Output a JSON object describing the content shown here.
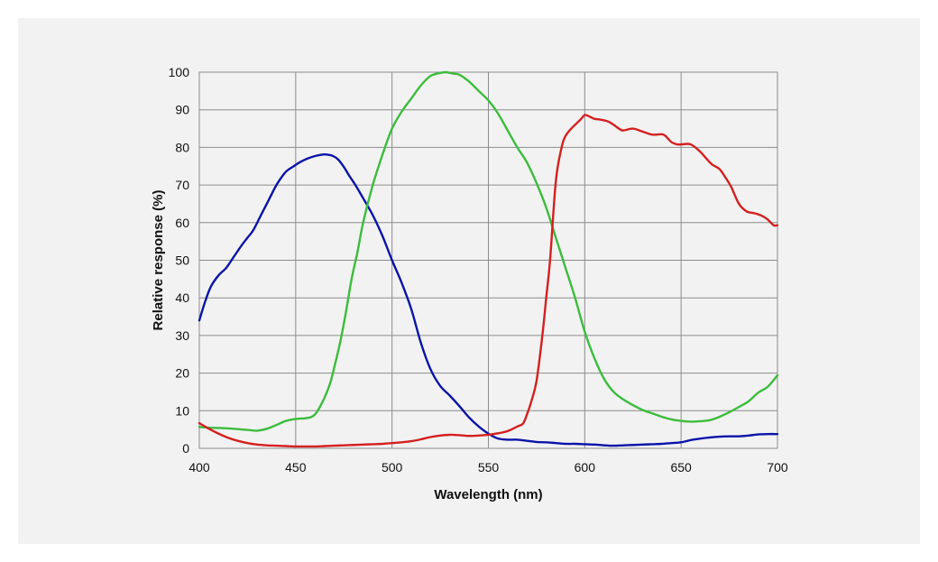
{
  "chart_data": {
    "type": "line",
    "title": "",
    "xlabel": "Wavelength (nm)",
    "ylabel": "Relative response (%)",
    "xlim": [
      400,
      700
    ],
    "ylim": [
      0,
      100
    ],
    "xticks": [
      400,
      450,
      500,
      550,
      600,
      650,
      700
    ],
    "yticks": [
      0,
      10,
      20,
      30,
      40,
      50,
      60,
      70,
      80,
      90,
      100
    ],
    "grid": true,
    "legend": "none",
    "series": [
      {
        "name": "Blue",
        "color": "#0a14a8",
        "x": [
          400,
          403,
          406,
          410,
          414,
          418,
          422,
          425,
          428,
          432,
          436,
          440,
          444,
          446,
          449,
          452,
          456,
          460,
          464,
          466,
          469,
          472,
          475,
          478,
          481,
          485,
          490,
          495,
          500,
          505,
          510,
          515,
          520,
          525,
          530,
          535,
          540,
          545,
          550,
          555,
          560,
          565,
          570,
          575,
          580,
          585,
          590,
          595,
          600,
          605,
          610,
          615,
          620,
          625,
          630,
          635,
          640,
          645,
          650,
          655,
          660,
          665,
          670,
          675,
          680,
          685,
          690,
          695,
          700
        ],
        "y": [
          34,
          39,
          43,
          46,
          48,
          51,
          54,
          56,
          58,
          62,
          66,
          70,
          73,
          74,
          75,
          76,
          77,
          77.7,
          78.1,
          78.1,
          77.8,
          76.8,
          74.8,
          72.3,
          70,
          66.5,
          62,
          56.5,
          50,
          44,
          37,
          28,
          21,
          16.6,
          14,
          11.2,
          8.2,
          5.8,
          3.9,
          2.6,
          2.3,
          2.3,
          2,
          1.7,
          1.6,
          1.4,
          1.2,
          1.2,
          1.1,
          1,
          0.8,
          0.7,
          0.8,
          0.9,
          1,
          1.1,
          1.2,
          1.4,
          1.6,
          2.2,
          2.6,
          2.9,
          3.1,
          3.2,
          3.2,
          3.4,
          3.7,
          3.8,
          3.8
        ]
      },
      {
        "name": "Green",
        "color": "#3cbc3c",
        "x": [
          400,
          405,
          410,
          415,
          420,
          425,
          430,
          435,
          440,
          445,
          450,
          455,
          458,
          460,
          462,
          465,
          468,
          470,
          473,
          476,
          479,
          482,
          485,
          490,
          495,
          500,
          505,
          510,
          515,
          520,
          525,
          528,
          530,
          532,
          535,
          540,
          545,
          550,
          555,
          560,
          565,
          570,
          575,
          580,
          585,
          590,
          595,
          600,
          605,
          610,
          615,
          620,
          625,
          630,
          635,
          640,
          645,
          650,
          655,
          660,
          665,
          670,
          675,
          680,
          685,
          690,
          695,
          700
        ],
        "y": [
          5.7,
          5.5,
          5.4,
          5.3,
          5.1,
          4.9,
          4.7,
          5.2,
          6.2,
          7.3,
          7.8,
          8,
          8.3,
          9,
          10.5,
          13.5,
          17.5,
          21.5,
          28,
          36,
          45,
          52,
          60,
          70,
          78,
          85,
          89.5,
          93,
          96.5,
          99,
          99.8,
          100,
          99.8,
          99.6,
          99.3,
          97.5,
          95,
          92.5,
          89,
          84.5,
          80,
          76,
          70.5,
          64,
          56,
          48,
          40,
          31,
          24,
          18.5,
          15,
          13,
          11.5,
          10.2,
          9.3,
          8.4,
          7.7,
          7.3,
          7.1,
          7.2,
          7.5,
          8.4,
          9.6,
          11,
          12.5,
          14.8,
          16.4,
          19.4
        ]
      },
      {
        "name": "Red",
        "color": "#d42020",
        "x": [
          400,
          405,
          410,
          415,
          420,
          425,
          430,
          435,
          440,
          445,
          450,
          455,
          460,
          465,
          470,
          475,
          480,
          485,
          490,
          495,
          500,
          505,
          510,
          515,
          520,
          525,
          530,
          535,
          540,
          545,
          550,
          555,
          560,
          565,
          568,
          570,
          572,
          575,
          578,
          580,
          582,
          585,
          588,
          590,
          593,
          596,
          598,
          600,
          602,
          605,
          608,
          612,
          615,
          618,
          620,
          625,
          630,
          635,
          640,
          642,
          645,
          648,
          650,
          655,
          660,
          663,
          666,
          670,
          673,
          676,
          680,
          684,
          688,
          692,
          695,
          698,
          700
        ],
        "y": [
          6.7,
          5.2,
          3.9,
          2.8,
          2,
          1.4,
          1,
          0.8,
          0.7,
          0.6,
          0.5,
          0.5,
          0.5,
          0.6,
          0.7,
          0.8,
          0.9,
          1,
          1.1,
          1.2,
          1.4,
          1.6,
          1.9,
          2.4,
          3,
          3.4,
          3.6,
          3.5,
          3.3,
          3.4,
          3.6,
          4,
          4.6,
          5.8,
          6.6,
          9,
          12,
          18,
          30,
          40,
          50,
          71,
          80,
          83,
          85,
          86.5,
          87.5,
          88.6,
          88.3,
          87.6,
          87.4,
          86.9,
          86,
          84.9,
          84.5,
          85,
          84.2,
          83.4,
          83.5,
          83,
          81.4,
          80.8,
          80.8,
          80.8,
          78.8,
          77.1,
          75.5,
          74.2,
          72,
          69.5,
          65,
          63,
          62.5,
          61.8,
          60.8,
          59.3,
          59.3
        ]
      }
    ]
  }
}
